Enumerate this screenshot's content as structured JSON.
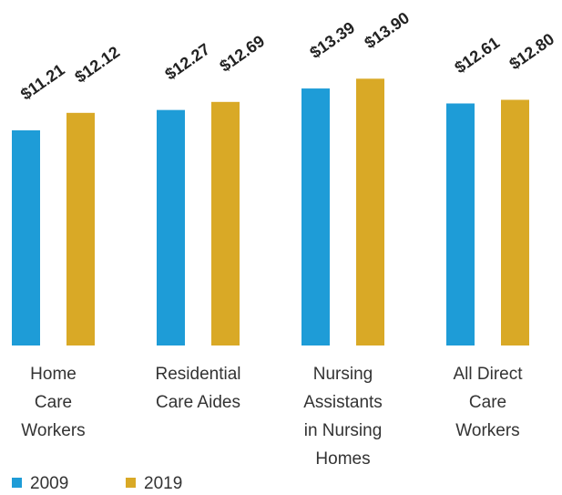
{
  "chart_data": {
    "type": "bar",
    "categories": [
      "Home\nCare\nWorkers",
      "Residential\nCare Aides",
      "Nursing\nAssistants\nin Nursing\nHomes",
      "All Direct\nCare\nWorkers"
    ],
    "series": [
      {
        "name": "2009",
        "color": "#1e9cd7",
        "values": [
          11.21,
          12.27,
          13.39,
          12.61
        ],
        "value_labels": [
          "$11.21",
          "$12.27",
          "$13.39",
          "$12.61"
        ]
      },
      {
        "name": "2019",
        "color": "#d9a926",
        "values": [
          12.12,
          12.69,
          13.9,
          12.8
        ],
        "value_labels": [
          "$12.12",
          "$12.69",
          "$13.90",
          "$12.80"
        ]
      }
    ],
    "ylim": [
      0,
      18
    ]
  }
}
